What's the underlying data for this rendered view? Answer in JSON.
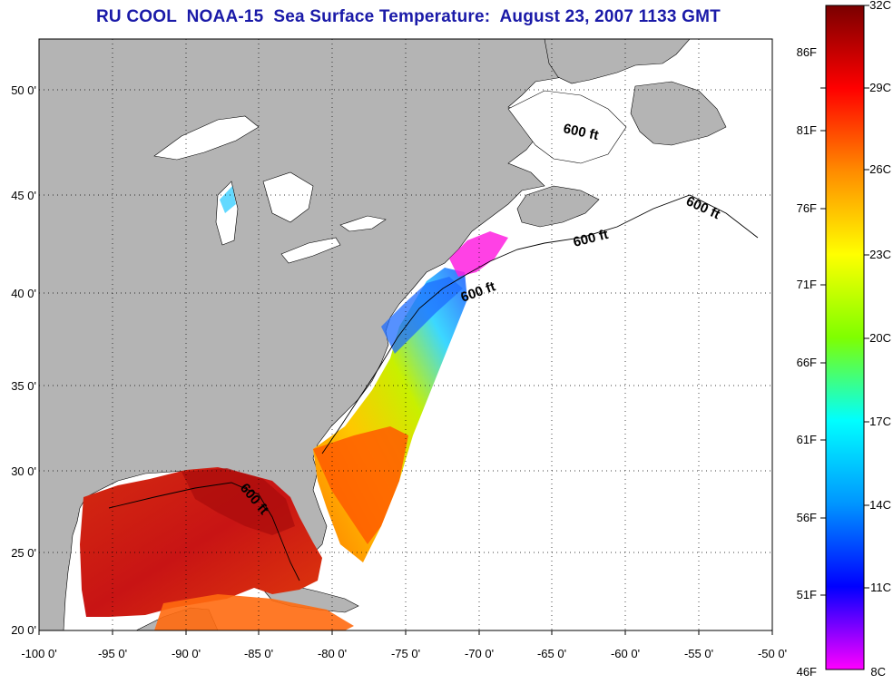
{
  "title": "RU COOL  NOAA-15  Sea Surface Temperature:  August 23, 2007 1133 GMT",
  "map": {
    "lon_ticks": [
      "-100 0'",
      "-95 0'",
      "-90 0'",
      "-85 0'",
      "-80 0'",
      "-75 0'",
      "-70 0'",
      "-65 0'",
      "-60 0'",
      "-55 0'",
      "-50 0'"
    ],
    "lat_ticks": [
      "50 0'",
      "45 0'",
      "40 0'",
      "35 0'",
      "30 0'",
      "25 0'",
      "20 0'"
    ],
    "isobath_labels": [
      "600 ft",
      "600 ft",
      "600 ft",
      "600 ft",
      "600 ft"
    ],
    "colors": {
      "land": "#b4b4b4",
      "no_data": "#ffffff",
      "grid": "#000000"
    }
  },
  "colorbar": {
    "fahrenheit_labels": [
      "86F",
      "81F",
      "76F",
      "71F",
      "66F",
      "61F",
      "56F",
      "51F",
      "46F"
    ],
    "celsius_labels": [
      "32C",
      "29C",
      "26C",
      "23C",
      "20C",
      "17C",
      "14C",
      "11C",
      "8C"
    ],
    "gradient_colors": [
      "#7a0000",
      "#ff0000",
      "#ff8c00",
      "#ffff00",
      "#7fff00",
      "#00ffff",
      "#0096ff",
      "#0000ff",
      "#ff00ff"
    ]
  }
}
